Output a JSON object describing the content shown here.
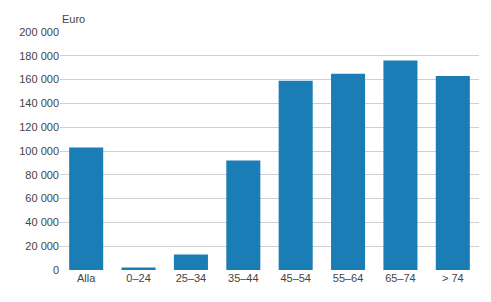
{
  "chart_data": {
    "type": "bar",
    "ylabel": "Euro",
    "categories": [
      "Alla",
      "0–24",
      "25–34",
      "35–44",
      "45–54",
      "55–64",
      "65–74",
      "> 74"
    ],
    "values": [
      103000,
      2000,
      13000,
      92000,
      159000,
      165000,
      176000,
      163000
    ],
    "color": "#1a7db5",
    "ylim": [
      0,
      200000
    ],
    "yticks": [
      0,
      {
        "value": 20000,
        "label": "20 000"
      },
      {
        "value": 40000,
        "label": "40 000"
      },
      {
        "value": 60000,
        "label": "60 000"
      },
      {
        "value": 80000,
        "label": "80 000"
      },
      {
        "value": 100000,
        "label": "100 000"
      },
      {
        "value": 120000,
        "label": "120 000"
      },
      {
        "value": 140000,
        "label": "140 000"
      },
      {
        "value": 160000,
        "label": "160 000"
      },
      {
        "value": 180000,
        "label": "180 000"
      },
      {
        "value": 200000,
        "label": "200 000"
      }
    ],
    "grid": true
  }
}
